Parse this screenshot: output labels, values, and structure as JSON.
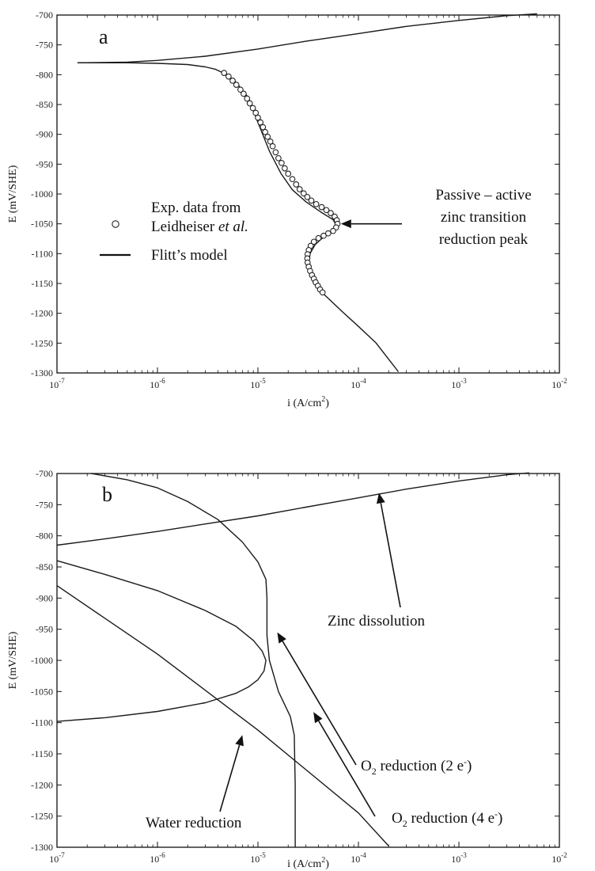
{
  "chart_data": [
    {
      "panel": "a",
      "type": "line",
      "xscale": "log",
      "xlim": [
        1e-07,
        0.01
      ],
      "ylim": [
        -1300,
        -700
      ],
      "xlabel": "i (A/cm²)",
      "xlabel_main": "i (A/cm",
      "xlabel_sup": "2",
      "xlabel_end": ")",
      "ylabel": "E (mV/SHE)",
      "xtick_labels": [
        {
          "base": "10",
          "exp": "-7"
        },
        {
          "base": "10",
          "exp": "-6"
        },
        {
          "base": "10",
          "exp": "-5"
        },
        {
          "base": "10",
          "exp": "-4"
        },
        {
          "base": "10",
          "exp": "-3"
        },
        {
          "base": "10",
          "exp": "-2"
        }
      ],
      "ytick_labels": [
        "-700",
        "-750",
        "-800",
        "-850",
        "-900",
        "-950",
        "-1000",
        "-1050",
        "-1100",
        "-1150",
        "-1200",
        "-1250",
        "-1300"
      ],
      "legend": [
        {
          "marker": "circle",
          "lines": [
            "Exp. data from",
            "Leidheiser et al."
          ],
          "line1": "Exp. data from",
          "line2_main": "Leidheiser ",
          "line2_italic": "et al."
        },
        {
          "marker": "line",
          "label": "Flitt's model",
          "text": "Flitt’s model"
        }
      ],
      "annotation": {
        "lines": [
          "Passive – active",
          "zinc transition",
          "reduction peak"
        ],
        "text": "Passive – active zinc transition reduction peak",
        "points_to": [
          6e-05,
          -1050
        ]
      },
      "series": [
        {
          "kind": "model_line",
          "x": [
            1.6e-07,
            5e-07,
            1e-06,
            3e-06,
            1e-05,
            3e-05,
            0.0001,
            0.0003,
            0.001,
            0.003,
            0.006
          ],
          "y": [
            -780,
            -779,
            -776,
            -769,
            -757,
            -744,
            -731,
            -719,
            -709,
            -701,
            -698
          ]
        },
        {
          "kind": "model_line",
          "x": [
            1.6e-07,
            5e-07,
            1e-06,
            2e-06,
            3e-06,
            3.8e-06,
            4.5e-06,
            6e-06,
            8e-06,
            1e-05,
            1.3e-05,
            1.7e-05,
            2.2e-05,
            3e-05,
            4.2e-05,
            5.6e-05,
            6e-05,
            5.6e-05,
            4.5e-05,
            3.7e-05,
            3.3e-05,
            3.2e-05,
            3.3e-05,
            3.6e-05,
            4.2e-05,
            5e-05,
            7e-05,
            0.0001,
            0.00015,
            0.0002,
            0.00025
          ],
          "y": [
            -780,
            -780,
            -781,
            -783,
            -787,
            -791,
            -797,
            -812,
            -838,
            -880,
            -928,
            -966,
            -993,
            -1013,
            -1030,
            -1043,
            -1052,
            -1062,
            -1072,
            -1085,
            -1100,
            -1117,
            -1135,
            -1150,
            -1163,
            -1175,
            -1198,
            -1222,
            -1250,
            -1277,
            -1298
          ]
        },
        {
          "kind": "experimental",
          "name": "Exp. data from Leidheiser et al.",
          "x": [
            4.6e-06,
            5.1e-06,
            5.6e-06,
            6.1e-06,
            6.7e-06,
            7.2e-06,
            7.8e-06,
            8.3e-06,
            8.9e-06,
            9.5e-06,
            1e-05,
            1.06e-05,
            1.12e-05,
            1.18e-05,
            1.25e-05,
            1.33e-05,
            1.4e-05,
            1.5e-05,
            1.6e-05,
            1.72e-05,
            1.85e-05,
            2e-05,
            2.2e-05,
            2.4e-05,
            2.6e-05,
            2.85e-05,
            3.1e-05,
            3.4e-05,
            3.8e-05,
            4.3e-05,
            4.8e-05,
            5.3e-05,
            5.8e-05,
            6.1e-05,
            6.2e-05,
            6e-05,
            5.6e-05,
            5e-05,
            4.5e-05,
            4e-05,
            3.6e-05,
            3.35e-05,
            3.2e-05,
            3.12e-05,
            3.1e-05,
            3.12e-05,
            3.2e-05,
            3.3e-05,
            3.45e-05,
            3.6e-05,
            3.75e-05,
            3.95e-05,
            4.15e-05,
            4.4e-05
          ],
          "y": [
            -797,
            -803,
            -810,
            -817,
            -825,
            -832,
            -840,
            -848,
            -856,
            -864,
            -872,
            -880,
            -888,
            -896,
            -904,
            -912,
            -920,
            -930,
            -940,
            -948,
            -957,
            -966,
            -975,
            -984,
            -992,
            -999,
            -1005,
            -1011,
            -1017,
            -1022,
            -1027,
            -1032,
            -1038,
            -1044,
            -1050,
            -1056,
            -1062,
            -1066,
            -1070,
            -1074,
            -1080,
            -1087,
            -1094,
            -1101,
            -1108,
            -1115,
            -1122,
            -1129,
            -1136,
            -1142,
            -1148,
            -1154,
            -1160,
            -1165
          ]
        }
      ]
    },
    {
      "panel": "b",
      "type": "line",
      "xscale": "log",
      "xlim": [
        1e-07,
        0.01
      ],
      "ylim": [
        -1300,
        -700
      ],
      "xlabel": "i (A/cm²)",
      "xlabel_main": "i (A/cm",
      "xlabel_sup": "2",
      "xlabel_end": ")",
      "ylabel": "E (mV/SHE)",
      "xtick_labels": [
        {
          "base": "10",
          "exp": "-7"
        },
        {
          "base": "10",
          "exp": "-6"
        },
        {
          "base": "10",
          "exp": "-5"
        },
        {
          "base": "10",
          "exp": "-4"
        },
        {
          "base": "10",
          "exp": "-3"
        },
        {
          "base": "10",
          "exp": "-2"
        }
      ],
      "ytick_labels": [
        "-700",
        "-750",
        "-800",
        "-850",
        "-900",
        "-950",
        "-1000",
        "-1050",
        "-1100",
        "-1150",
        "-1200",
        "-1250",
        "-1300"
      ],
      "annotations": [
        {
          "text": "Zinc dissolution",
          "points_to": [
            0.00016,
            -726
          ]
        },
        {
          "text": "O₂ reduction (2 e⁻)",
          "main": "O",
          "sub": "2",
          "rest": " reduction (2 e",
          "sup": "-",
          "end": ")",
          "points_to": [
            1.45e-05,
            -955
          ]
        },
        {
          "text": "O₂ reduction (4 e⁻)",
          "main": "O",
          "sub": "2",
          "rest": " reduction (4 e",
          "sup": "-",
          "end": ")",
          "points_to": [
            3.2e-05,
            -1083
          ]
        },
        {
          "text": "Water reduction",
          "points_to": [
            7e-06,
            -1120
          ]
        }
      ],
      "series": [
        {
          "name": "Zinc dissolution",
          "x": [
            1e-07,
            3e-07,
            1e-06,
            3e-06,
            1e-05,
            3e-05,
            0.0001,
            0.0003,
            0.001,
            0.003,
            0.005
          ],
          "y": [
            -815,
            -805,
            -793,
            -781,
            -768,
            -754,
            -739,
            -725,
            -712,
            -702,
            -699
          ]
        },
        {
          "name": "O₂ reduction (2 e⁻)",
          "x": [
            1e-07,
            3e-07,
            1e-06,
            3e-06,
            6e-06,
            9e-06,
            1.1e-05,
            1.2e-05,
            1.15e-05,
            1e-05,
            8e-06,
            6e-06,
            3e-06,
            1e-06,
            3e-07,
            1e-07
          ],
          "y": [
            -840,
            -862,
            -888,
            -920,
            -945,
            -968,
            -985,
            -1000,
            -1017,
            -1031,
            -1043,
            -1053,
            -1068,
            -1082,
            -1092,
            -1098
          ]
        },
        {
          "name": "O₂ reduction (4 e⁻)",
          "x": [
            2.2e-07,
            5e-07,
            1e-06,
            2e-06,
            4e-06,
            7e-06,
            1e-05,
            1.2e-05,
            1.23e-05,
            1.23e-05,
            1.3e-05,
            1.6e-05,
            2.1e-05,
            2.3e-05,
            2.35e-05,
            2.35e-05
          ],
          "y": [
            -700,
            -710,
            -723,
            -745,
            -774,
            -810,
            -842,
            -870,
            -900,
            -960,
            -1000,
            -1050,
            -1090,
            -1120,
            -1200,
            -1300
          ]
        },
        {
          "name": "Water reduction",
          "x": [
            1e-07,
            1e-06,
            1e-05,
            0.0001,
            0.0002
          ],
          "y": [
            -880,
            -990,
            -1112,
            -1245,
            -1298
          ]
        }
      ]
    }
  ]
}
